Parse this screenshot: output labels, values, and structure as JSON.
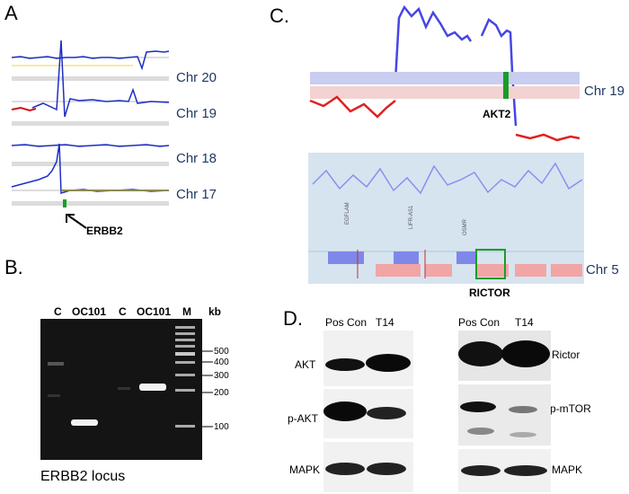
{
  "panels": {
    "a": {
      "letter": "A",
      "chromosomes": [
        "Chr 20",
        "Chr 19",
        "Chr 18",
        "Chr 17"
      ],
      "gene": "ERBB2"
    },
    "b": {
      "letter": "B.",
      "lanes": [
        "C",
        "OC101",
        "C",
        "OC101",
        "M"
      ],
      "kb_header": "kb",
      "markers": [
        "500",
        "400",
        "300",
        "200",
        "100"
      ],
      "caption": "ERBB2 locus"
    },
    "c": {
      "letter": "C.",
      "chr_top": "Chr 19",
      "gene_top": "AKT2",
      "chr_bottom": "Chr 5",
      "gene_bottom": "RICTOR",
      "track_genes": [
        "EGFLAM",
        "LIFR-AS1",
        "OSMR"
      ]
    },
    "d": {
      "letter": "D.",
      "left_columns": [
        "Pos Con",
        "T14"
      ],
      "right_columns": [
        "Pos Con",
        "T14"
      ],
      "left_rows": [
        "AKT",
        "p-AKT",
        "MAPK"
      ],
      "right_rows": [
        "Rictor",
        "p-mTOR",
        "MAPK"
      ]
    }
  }
}
